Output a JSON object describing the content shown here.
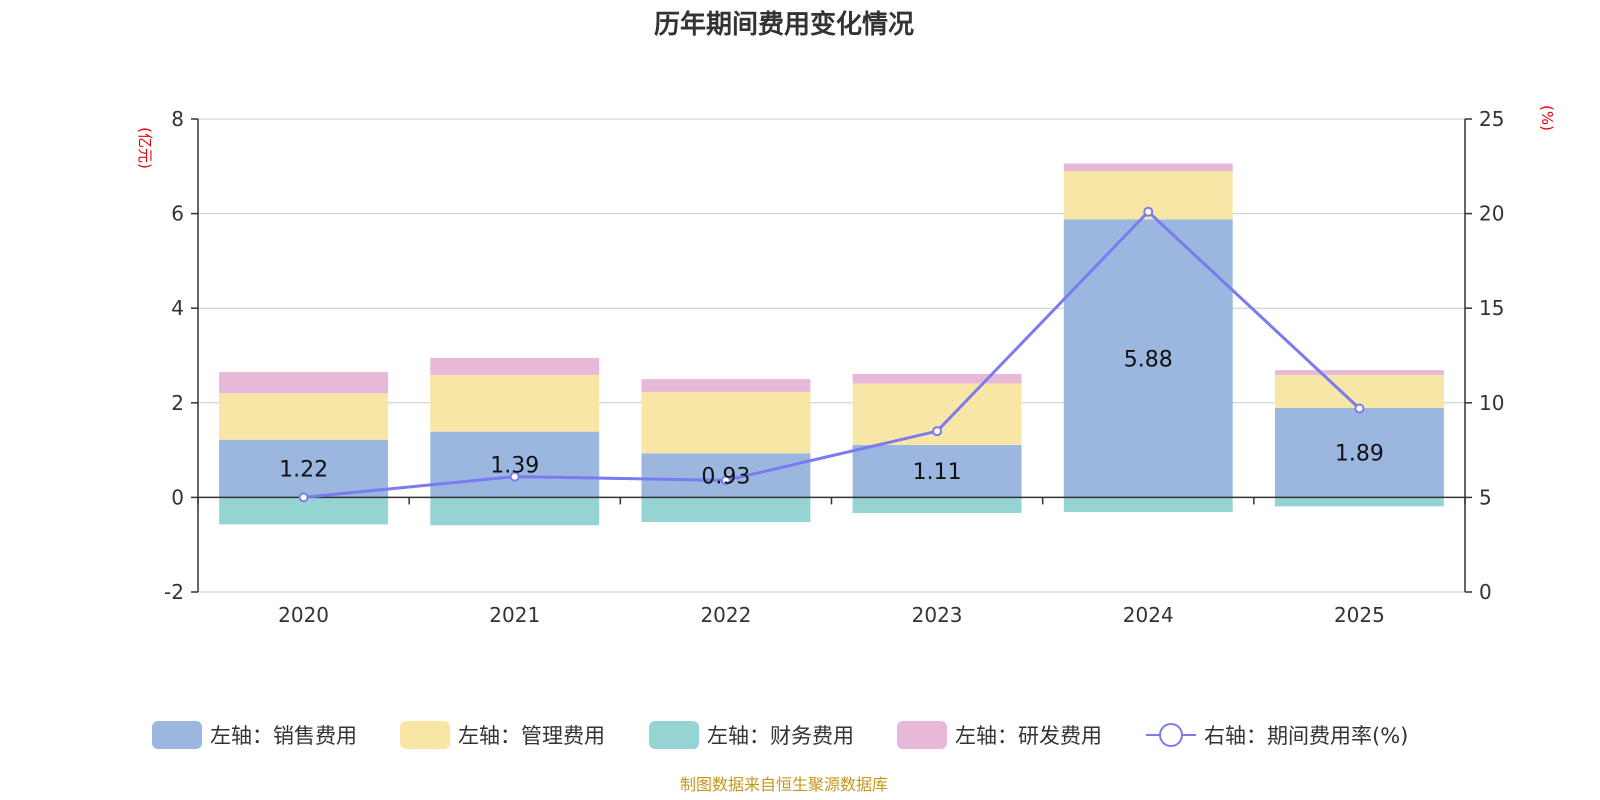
{
  "chart_data": {
    "type": "bar",
    "title": "历年期间费用变化情况",
    "categories": [
      "2020",
      "2021",
      "2022",
      "2023",
      "2024",
      "2025"
    ],
    "left_axis": {
      "unit": "(亿元)",
      "ylim": [
        -2,
        8
      ],
      "ticks": [
        -2,
        0,
        2,
        4,
        6,
        8
      ]
    },
    "right_axis": {
      "unit": "(%)",
      "ylim": [
        0,
        25
      ],
      "ticks": [
        0,
        5,
        10,
        15,
        20,
        25
      ]
    },
    "series": [
      {
        "name": "左轴：销售费用",
        "color": "#9bb7e0",
        "axis": "left",
        "values": [
          1.22,
          1.39,
          0.93,
          1.11,
          5.88,
          1.89
        ],
        "labels": [
          "1.22",
          "1.39",
          "0.93",
          "1.11",
          "5.88",
          "1.89"
        ]
      },
      {
        "name": "左轴：管理费用",
        "color": "#f8e6a6",
        "axis": "left",
        "values": [
          0.98,
          1.2,
          1.3,
          1.3,
          1.02,
          0.7
        ]
      },
      {
        "name": "左轴：财务费用",
        "color": "#96d4d4",
        "axis": "left",
        "values": [
          -0.57,
          -0.59,
          -0.52,
          -0.33,
          -0.31,
          -0.19
        ]
      },
      {
        "name": "左轴：研发费用",
        "color": "#e8b8d8",
        "axis": "left",
        "values": [
          0.45,
          0.36,
          0.27,
          0.2,
          0.16,
          0.1
        ]
      }
    ],
    "line": {
      "name": "右轴：期间费用率(%)",
      "color": "#7b7bf0",
      "axis": "right",
      "values": [
        5.0,
        6.1,
        5.9,
        8.5,
        20.1,
        9.7
      ]
    },
    "legend_position": "bottom",
    "grid": true,
    "source": "制图数据来自恒生聚源数据库"
  }
}
